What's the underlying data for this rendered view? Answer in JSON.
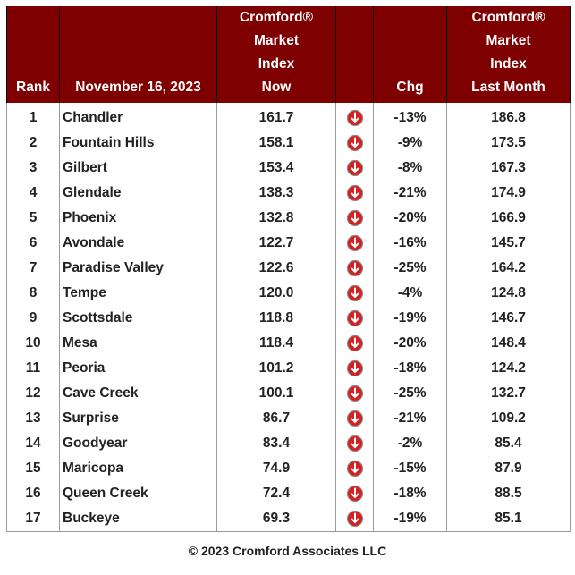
{
  "table": {
    "header": {
      "rank": "Rank",
      "date": "November 16, 2023",
      "now": [
        "Cromford®",
        "Market",
        "Index",
        "Now"
      ],
      "chg": "Chg",
      "last": [
        "Cromford®",
        "Market",
        "Index",
        "Last Month"
      ]
    },
    "rows": [
      [
        "1",
        "Chandler",
        "161.7",
        "-13%",
        "186.8"
      ],
      [
        "2",
        "Fountain Hills",
        "158.1",
        "-9%",
        "173.5"
      ],
      [
        "3",
        "Gilbert",
        "153.4",
        "-8%",
        "167.3"
      ],
      [
        "4",
        "Glendale",
        "138.3",
        "-21%",
        "174.9"
      ],
      [
        "5",
        "Phoenix",
        "132.8",
        "-20%",
        "166.9"
      ],
      [
        "6",
        "Avondale",
        "122.7",
        "-16%",
        "145.7"
      ],
      [
        "7",
        "Paradise Valley",
        "122.6",
        "-25%",
        "164.2"
      ],
      [
        "8",
        "Tempe",
        "120.0",
        "-4%",
        "124.8"
      ],
      [
        "9",
        "Scottsdale",
        "118.8",
        "-19%",
        "146.7"
      ],
      [
        "10",
        "Mesa",
        "118.4",
        "-20%",
        "148.4"
      ],
      [
        "11",
        "Peoria",
        "101.2",
        "-18%",
        "124.2"
      ],
      [
        "12",
        "Cave Creek",
        "100.1",
        "-25%",
        "132.7"
      ],
      [
        "13",
        "Surprise",
        "86.7",
        "-21%",
        "109.2"
      ],
      [
        "14",
        "Goodyear",
        "83.4",
        "-2%",
        "85.4"
      ],
      [
        "15",
        "Maricopa",
        "74.9",
        "-15%",
        "87.9"
      ],
      [
        "16",
        "Queen Creek",
        "72.4",
        "-18%",
        "88.5"
      ],
      [
        "17",
        "Buckeye",
        "69.3",
        "-19%",
        "85.1"
      ]
    ]
  },
  "footer": "© 2023 Cromford Associates LLC"
}
